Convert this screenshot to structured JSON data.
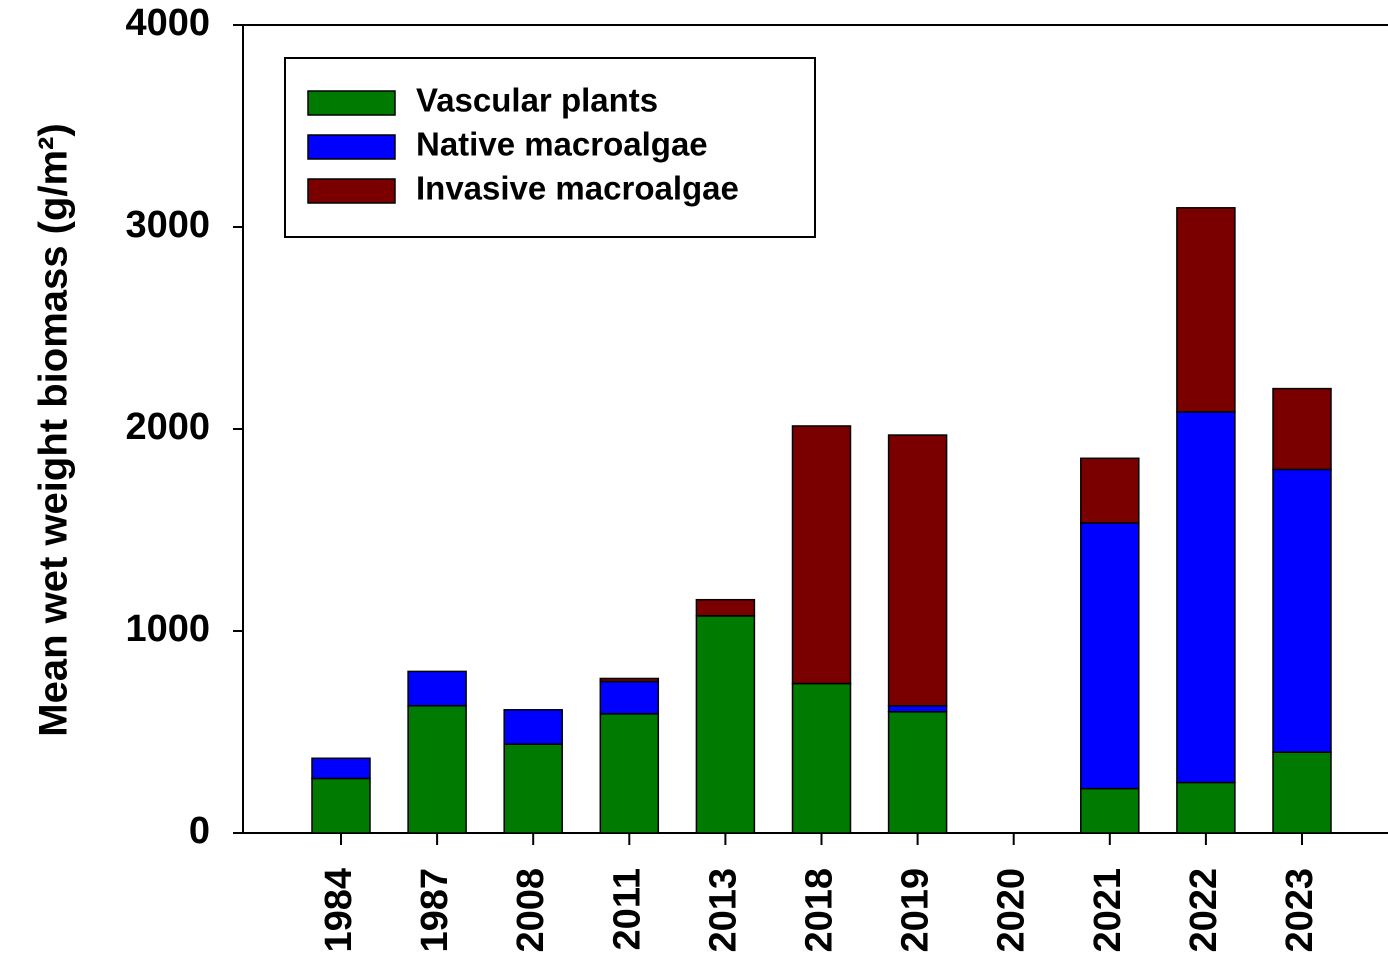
{
  "chart_data": {
    "type": "stacked_bar",
    "ylabel": "Mean wet weight biomass (g/m²)",
    "categories": [
      "1984",
      "1987",
      "2008",
      "2011",
      "2013",
      "2018",
      "2019",
      "2020",
      "2021",
      "2022",
      "2023"
    ],
    "series": [
      {
        "name": "Vascular plants",
        "color": "#007a00",
        "values": [
          270,
          630,
          440,
          590,
          1075,
          740,
          600,
          null,
          220,
          250,
          400
        ]
      },
      {
        "name": "Native macroalgae",
        "color": "#0000ff",
        "values": [
          100,
          170,
          170,
          160,
          0,
          0,
          30,
          null,
          1315,
          1835,
          1400
        ]
      },
      {
        "name": "Invasive macroalgae",
        "color": "#7a0000",
        "values": [
          0,
          0,
          0,
          15,
          80,
          1275,
          1340,
          null,
          320,
          1010,
          400
        ]
      }
    ],
    "ylim": [
      0,
      4000
    ],
    "yticks": [
      0,
      1000,
      2000,
      3000,
      4000
    ],
    "legend": "upper left"
  }
}
